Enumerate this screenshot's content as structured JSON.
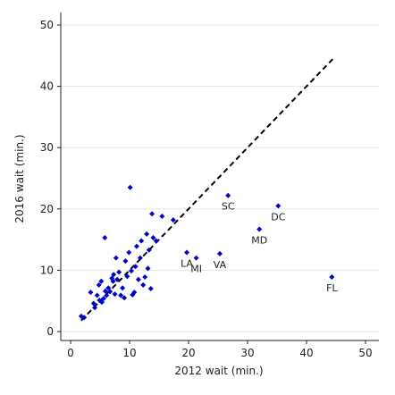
{
  "chart_data": {
    "type": "scatter",
    "title": "",
    "xlabel": "2012 wait (min.)",
    "ylabel": "2016 wait (min.)",
    "xlim": [
      0,
      50
    ],
    "ylim": [
      0,
      50
    ],
    "xticks": [
      0,
      10,
      20,
      30,
      40,
      50
    ],
    "yticks": [
      0,
      10,
      20,
      30,
      40,
      50
    ],
    "grid": "horizontal",
    "marker_color": "#0000cc",
    "reference_line": {
      "style": "dashed",
      "color": "#000000",
      "x": [
        1.8,
        44.5
      ],
      "y": [
        1.8,
        44.5
      ]
    },
    "series": [
      {
        "points": [
          {
            "x": 1.8,
            "y": 2.5
          },
          {
            "x": 2.3,
            "y": 2.3
          },
          {
            "x": 3.4,
            "y": 6.4
          },
          {
            "x": 3.9,
            "y": 4.6
          },
          {
            "x": 4.1,
            "y": 3.9
          },
          {
            "x": 4.5,
            "y": 5.9
          },
          {
            "x": 4.8,
            "y": 7.6
          },
          {
            "x": 4.9,
            "y": 5.1
          },
          {
            "x": 5.2,
            "y": 8.2
          },
          {
            "x": 5.3,
            "y": 4.8
          },
          {
            "x": 5.6,
            "y": 5.4
          },
          {
            "x": 5.8,
            "y": 15.3
          },
          {
            "x": 5.9,
            "y": 6.6
          },
          {
            "x": 6.1,
            "y": 5.9
          },
          {
            "x": 6.4,
            "y": 7.1
          },
          {
            "x": 6.7,
            "y": 6.5
          },
          {
            "x": 7.0,
            "y": 8.7
          },
          {
            "x": 7.2,
            "y": 8.2
          },
          {
            "x": 7.3,
            "y": 9.3
          },
          {
            "x": 7.5,
            "y": 6.1
          },
          {
            "x": 7.7,
            "y": 12.0
          },
          {
            "x": 7.9,
            "y": 8.5
          },
          {
            "x": 8.2,
            "y": 9.7
          },
          {
            "x": 8.5,
            "y": 5.9
          },
          {
            "x": 8.8,
            "y": 7.1
          },
          {
            "x": 9.1,
            "y": 5.5
          },
          {
            "x": 9.3,
            "y": 11.5
          },
          {
            "x": 9.6,
            "y": 9.0
          },
          {
            "x": 9.9,
            "y": 12.9
          },
          {
            "x": 10.1,
            "y": 23.5
          },
          {
            "x": 10.3,
            "y": 9.9
          },
          {
            "x": 10.5,
            "y": 6.0
          },
          {
            "x": 10.8,
            "y": 6.4
          },
          {
            "x": 11.0,
            "y": 10.6
          },
          {
            "x": 11.2,
            "y": 13.9
          },
          {
            "x": 11.5,
            "y": 8.5
          },
          {
            "x": 11.8,
            "y": 12.0
          },
          {
            "x": 12.0,
            "y": 14.8
          },
          {
            "x": 12.3,
            "y": 7.6
          },
          {
            "x": 12.6,
            "y": 8.9
          },
          {
            "x": 12.9,
            "y": 15.9
          },
          {
            "x": 13.1,
            "y": 10.3
          },
          {
            "x": 13.3,
            "y": 13.3
          },
          {
            "x": 13.6,
            "y": 7.0
          },
          {
            "x": 13.8,
            "y": 19.2
          },
          {
            "x": 14.0,
            "y": 15.3
          },
          {
            "x": 14.5,
            "y": 14.8
          },
          {
            "x": 15.5,
            "y": 18.8
          },
          {
            "x": 17.4,
            "y": 18.2
          },
          {
            "x": 19.7,
            "y": 12.9
          },
          {
            "x": 21.3,
            "y": 12.0
          },
          {
            "x": 25.3,
            "y": 12.7
          },
          {
            "x": 26.7,
            "y": 22.2
          },
          {
            "x": 32.0,
            "y": 16.7
          },
          {
            "x": 35.2,
            "y": 20.5
          },
          {
            "x": 44.3,
            "y": 8.9
          }
        ]
      }
    ],
    "annotations": [
      {
        "text": "SC",
        "x": 26.7,
        "y": 22.2
      },
      {
        "text": "DC",
        "x": 35.2,
        "y": 20.5
      },
      {
        "text": "MD",
        "x": 32.0,
        "y": 16.7
      },
      {
        "text": "LA",
        "x": 19.7,
        "y": 12.9
      },
      {
        "text": "MI",
        "x": 21.3,
        "y": 12.0
      },
      {
        "text": "VA",
        "x": 25.3,
        "y": 12.7
      },
      {
        "text": "FL",
        "x": 44.3,
        "y": 8.9
      }
    ]
  }
}
